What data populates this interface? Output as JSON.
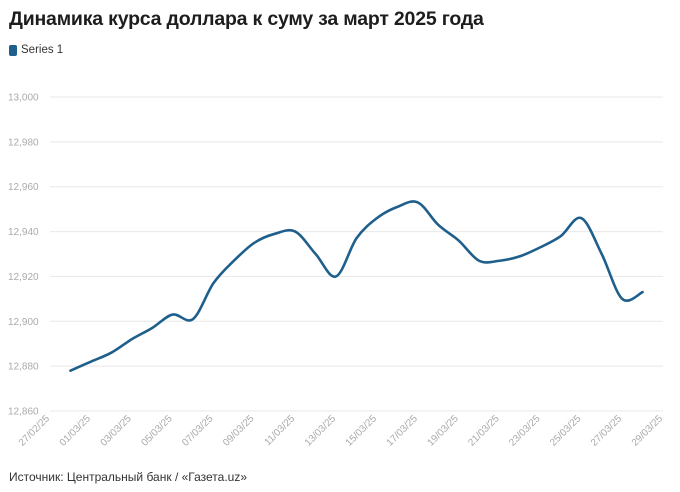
{
  "title": "Динамика курса доллара к суму за март 2025 года",
  "source": "Источник: Центральный банк / «Газета.uz»",
  "colors": {
    "series": "#1f5f8b",
    "grid": "#e8e8e8",
    "tick": "#aaaaaa"
  },
  "chart_data": {
    "type": "line",
    "title": "Динамика курса доллара к суму за март 2025 года",
    "xlabel": "",
    "ylabel": "",
    "ylim": [
      12860,
      13000
    ],
    "y_ticks": [
      "12,860",
      "12,880",
      "12,900",
      "12,920",
      "12,940",
      "12,960",
      "12,980",
      "13,000"
    ],
    "x_tick_labels": [
      "27/02/25",
      "01/03/25",
      "03/03/25",
      "05/03/25",
      "07/03/25",
      "09/03/25",
      "11/03/25",
      "13/03/25",
      "15/03/25",
      "17/03/25",
      "19/03/25",
      "21/03/25",
      "23/03/25",
      "25/03/25",
      "27/03/25",
      "29/03/25"
    ],
    "grid": true,
    "legend": "top-left",
    "series": [
      {
        "name": "Series 1",
        "x": [
          "28/02/25",
          "01/03/25",
          "02/03/25",
          "03/03/25",
          "04/03/25",
          "05/03/25",
          "06/03/25",
          "07/03/25",
          "08/03/25",
          "09/03/25",
          "10/03/25",
          "11/03/25",
          "12/03/25",
          "13/03/25",
          "14/03/25",
          "15/03/25",
          "16/03/25",
          "17/03/25",
          "18/03/25",
          "19/03/25",
          "20/03/25",
          "21/03/25",
          "22/03/25",
          "23/03/25",
          "24/03/25",
          "25/03/25",
          "26/03/25",
          "27/03/25",
          "28/03/25"
        ],
        "values": [
          12878,
          12882,
          12886,
          12892,
          12897,
          12903,
          12901,
          12917,
          12927,
          12935,
          12939,
          12940,
          12930,
          12920,
          12937,
          12946,
          12951,
          12953,
          12943,
          12936,
          12927,
          12927,
          12929,
          12933,
          12938,
          12946,
          12930,
          12910,
          12913
        ]
      }
    ]
  }
}
